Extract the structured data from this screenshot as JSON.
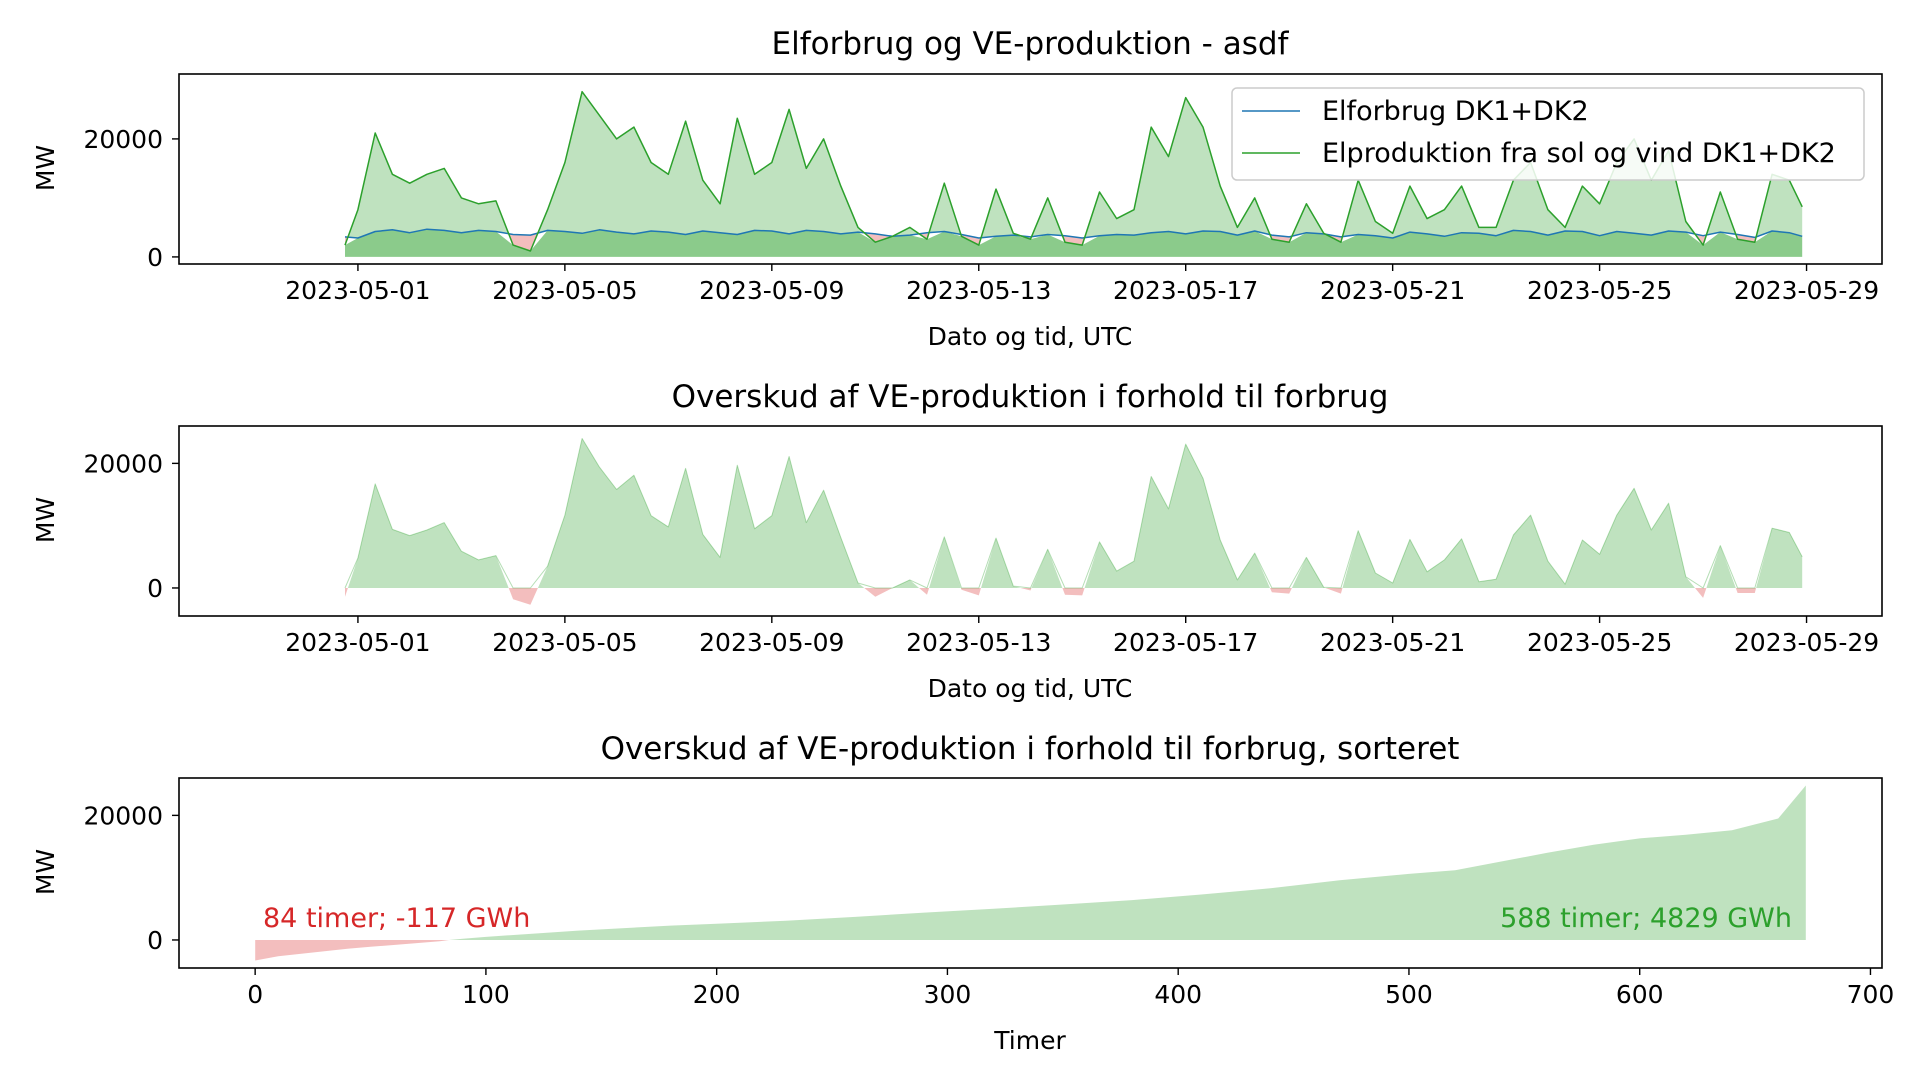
{
  "colors": {
    "consumption": "#1f77b4",
    "production": "#2ca02c",
    "surplus_fill": "#2ca02c",
    "deficit_fill": "#d62728",
    "deficit_text": "#d62728",
    "surplus_text": "#2ca02c"
  },
  "chart_data": [
    {
      "type": "area",
      "title": "Elforbrug og VE-produktion - asdf",
      "xlabel": "Dato og tid, UTC",
      "ylabel": "MW",
      "x_kind": "date",
      "xlim": [
        "2023-04-27T13:00",
        "2023-05-30T11:00"
      ],
      "ylim": [
        -1200,
        31000
      ],
      "xticks": [
        "2023-05-01",
        "2023-05-05",
        "2023-05-09",
        "2023-05-13",
        "2023-05-17",
        "2023-05-21",
        "2023-05-25",
        "2023-05-29"
      ],
      "yticks": [
        0,
        20000
      ],
      "legend_position": "top-right",
      "grid": false,
      "x": [
        "2023-04-30 18:00",
        "2023-05-01 00:00",
        "2023-05-01 08:00",
        "2023-05-01 16:00",
        "2023-05-02 00:00",
        "2023-05-02 08:00",
        "2023-05-02 16:00",
        "2023-05-03 00:00",
        "2023-05-03 08:00",
        "2023-05-03 16:00",
        "2023-05-04 00:00",
        "2023-05-04 08:00",
        "2023-05-04 16:00",
        "2023-05-05 00:00",
        "2023-05-05 08:00",
        "2023-05-05 16:00",
        "2023-05-06 00:00",
        "2023-05-06 08:00",
        "2023-05-06 16:00",
        "2023-05-07 00:00",
        "2023-05-07 08:00",
        "2023-05-07 16:00",
        "2023-05-08 00:00",
        "2023-05-08 08:00",
        "2023-05-08 16:00",
        "2023-05-09 00:00",
        "2023-05-09 08:00",
        "2023-05-09 16:00",
        "2023-05-10 00:00",
        "2023-05-10 08:00",
        "2023-05-10 16:00",
        "2023-05-11 00:00",
        "2023-05-11 08:00",
        "2023-05-11 16:00",
        "2023-05-12 00:00",
        "2023-05-12 08:00",
        "2023-05-12 16:00",
        "2023-05-13 00:00",
        "2023-05-13 08:00",
        "2023-05-13 16:00",
        "2023-05-14 00:00",
        "2023-05-14 08:00",
        "2023-05-14 16:00",
        "2023-05-15 00:00",
        "2023-05-15 08:00",
        "2023-05-15 16:00",
        "2023-05-16 00:00",
        "2023-05-16 08:00",
        "2023-05-16 16:00",
        "2023-05-17 00:00",
        "2023-05-17 08:00",
        "2023-05-17 16:00",
        "2023-05-18 00:00",
        "2023-05-18 08:00",
        "2023-05-18 16:00",
        "2023-05-19 00:00",
        "2023-05-19 08:00",
        "2023-05-19 16:00",
        "2023-05-20 00:00",
        "2023-05-20 08:00",
        "2023-05-20 16:00",
        "2023-05-21 00:00",
        "2023-05-21 08:00",
        "2023-05-21 16:00",
        "2023-05-22 00:00",
        "2023-05-22 08:00",
        "2023-05-22 16:00",
        "2023-05-23 00:00",
        "2023-05-23 08:00",
        "2023-05-23 16:00",
        "2023-05-24 00:00",
        "2023-05-24 08:00",
        "2023-05-24 16:00",
        "2023-05-25 00:00",
        "2023-05-25 08:00",
        "2023-05-25 16:00",
        "2023-05-26 00:00",
        "2023-05-26 08:00",
        "2023-05-26 16:00",
        "2023-05-27 00:00",
        "2023-05-27 08:00",
        "2023-05-27 16:00",
        "2023-05-28 00:00",
        "2023-05-28 08:00",
        "2023-05-28 16:00",
        "2023-05-28 22:00"
      ],
      "series": [
        {
          "name": "Elforbrug DK1+DK2",
          "values": [
            3400,
            3200,
            4300,
            4600,
            4100,
            4700,
            4500,
            4100,
            4500,
            4300,
            3800,
            3700,
            4500,
            4300,
            4000,
            4600,
            4200,
            3900,
            4400,
            4200,
            3800,
            4400,
            4100,
            3800,
            4500,
            4400,
            3900,
            4500,
            4300,
            3900,
            4200,
            3900,
            3500,
            3700,
            4100,
            4300,
            3800,
            3200,
            3500,
            3700,
            3400,
            3800,
            3600,
            3200,
            3600,
            3800,
            3700,
            4100,
            4300,
            3900,
            4400,
            4300,
            3700,
            4400,
            3700,
            3400,
            4100,
            3900,
            3400,
            3800,
            3600,
            3200,
            4200,
            3900,
            3500,
            4100,
            4000,
            3600,
            4500,
            4300,
            3700,
            4400,
            4300,
            3600,
            4300,
            4000,
            3700,
            4400,
            4200,
            3600,
            4200,
            3800,
            3300,
            4400,
            4100,
            3500
          ]
        },
        {
          "name": "Elproduktion fra sol og vind DK1+DK2",
          "values": [
            2000,
            8000,
            21000,
            14000,
            12500,
            14000,
            15000,
            10000,
            9000,
            9500,
            2000,
            1000,
            8000,
            16000,
            28000,
            24000,
            20000,
            22000,
            16000,
            14000,
            23000,
            13000,
            9000,
            23500,
            14000,
            16000,
            25000,
            15000,
            20000,
            12000,
            5000,
            2500,
            3500,
            5000,
            3000,
            12500,
            3500,
            2000,
            11500,
            4000,
            3000,
            10000,
            2500,
            2000,
            11000,
            6500,
            8000,
            22000,
            17000,
            27000,
            22000,
            12000,
            5000,
            10000,
            3000,
            2500,
            9000,
            4000,
            2500,
            13000,
            6000,
            4000,
            12000,
            6500,
            8000,
            12000,
            5000,
            5000,
            13000,
            16000,
            8000,
            5000,
            12000,
            9000,
            16000,
            20000,
            13000,
            18000,
            6000,
            2000,
            11000,
            3000,
            2500,
            14000,
            13000,
            8500
          ]
        }
      ]
    },
    {
      "type": "area",
      "title": "Overskud af VE-produktion i forhold til forbrug",
      "xlabel": "Dato og tid, UTC",
      "ylabel": "MW",
      "x_kind": "date",
      "xlim": [
        "2023-04-27T13:00",
        "2023-05-30T11:00"
      ],
      "ylim": [
        -4500,
        26000
      ],
      "xticks": [
        "2023-05-01",
        "2023-05-05",
        "2023-05-09",
        "2023-05-13",
        "2023-05-17",
        "2023-05-21",
        "2023-05-25",
        "2023-05-29"
      ],
      "yticks": [
        0,
        20000
      ],
      "grid": false,
      "x": [
        "2023-04-30 18:00",
        "2023-05-01 00:00",
        "2023-05-01 08:00",
        "2023-05-01 16:00",
        "2023-05-02 00:00",
        "2023-05-02 08:00",
        "2023-05-02 16:00",
        "2023-05-03 00:00",
        "2023-05-03 08:00",
        "2023-05-03 16:00",
        "2023-05-04 00:00",
        "2023-05-04 08:00",
        "2023-05-04 16:00",
        "2023-05-05 00:00",
        "2023-05-05 08:00",
        "2023-05-05 16:00",
        "2023-05-06 00:00",
        "2023-05-06 08:00",
        "2023-05-06 16:00",
        "2023-05-07 00:00",
        "2023-05-07 08:00",
        "2023-05-07 16:00",
        "2023-05-08 00:00",
        "2023-05-08 08:00",
        "2023-05-08 16:00",
        "2023-05-09 00:00",
        "2023-05-09 08:00",
        "2023-05-09 16:00",
        "2023-05-10 00:00",
        "2023-05-10 08:00",
        "2023-05-10 16:00",
        "2023-05-11 00:00",
        "2023-05-11 08:00",
        "2023-05-11 16:00",
        "2023-05-12 00:00",
        "2023-05-12 08:00",
        "2023-05-12 16:00",
        "2023-05-13 00:00",
        "2023-05-13 08:00",
        "2023-05-13 16:00",
        "2023-05-14 00:00",
        "2023-05-14 08:00",
        "2023-05-14 16:00",
        "2023-05-15 00:00",
        "2023-05-15 08:00",
        "2023-05-15 16:00",
        "2023-05-16 00:00",
        "2023-05-16 08:00",
        "2023-05-16 16:00",
        "2023-05-17 00:00",
        "2023-05-17 08:00",
        "2023-05-17 16:00",
        "2023-05-18 00:00",
        "2023-05-18 08:00",
        "2023-05-18 16:00",
        "2023-05-19 00:00",
        "2023-05-19 08:00",
        "2023-05-19 16:00",
        "2023-05-20 00:00",
        "2023-05-20 08:00",
        "2023-05-20 16:00",
        "2023-05-21 00:00",
        "2023-05-21 08:00",
        "2023-05-21 16:00",
        "2023-05-22 00:00",
        "2023-05-22 08:00",
        "2023-05-22 16:00",
        "2023-05-23 00:00",
        "2023-05-23 08:00",
        "2023-05-23 16:00",
        "2023-05-24 00:00",
        "2023-05-24 08:00",
        "2023-05-24 16:00",
        "2023-05-25 00:00",
        "2023-05-25 08:00",
        "2023-05-25 16:00",
        "2023-05-26 00:00",
        "2023-05-26 08:00",
        "2023-05-26 16:00",
        "2023-05-27 00:00",
        "2023-05-27 08:00",
        "2023-05-27 16:00",
        "2023-05-28 00:00",
        "2023-05-28 08:00",
        "2023-05-28 16:00",
        "2023-05-28 22:00"
      ],
      "series": [
        {
          "name": "",
          "values": [
            -1400,
            4800,
            16700,
            9400,
            8400,
            9300,
            10500,
            5900,
            4500,
            5200,
            -1800,
            -2700,
            3500,
            11700,
            24000,
            19400,
            15800,
            18100,
            11600,
            9800,
            19200,
            8600,
            4900,
            19700,
            9500,
            11600,
            21100,
            10500,
            15700,
            8100,
            800,
            -1400,
            0,
            1300,
            -1100,
            8200,
            -300,
            -1200,
            8000,
            300,
            -400,
            6200,
            -1100,
            -1200,
            7400,
            2700,
            4300,
            17900,
            12700,
            23100,
            17600,
            7700,
            1300,
            5600,
            -700,
            -900,
            4900,
            100,
            -900,
            9200,
            2400,
            800,
            7800,
            2600,
            4500,
            7900,
            1000,
            1400,
            8500,
            11700,
            4300,
            600,
            7700,
            5400,
            11700,
            16000,
            9300,
            13600,
            1800,
            -1600,
            6800,
            -800,
            -800,
            9600,
            8900,
            5000
          ]
        }
      ]
    },
    {
      "type": "area",
      "title": "Overskud af VE-produktion i forhold til forbrug, sorteret",
      "xlabel": "Timer",
      "ylabel": "MW",
      "xlim": [
        -33,
        705
      ],
      "ylim": [
        -4500,
        26000
      ],
      "xticks": [
        0,
        100,
        200,
        300,
        400,
        500,
        600,
        700
      ],
      "yticks": [
        0,
        20000
      ],
      "grid": false,
      "x": [
        0,
        10,
        20,
        30,
        40,
        50,
        60,
        70,
        80,
        84,
        90,
        100,
        120,
        140,
        160,
        180,
        200,
        230,
        260,
        290,
        320,
        350,
        380,
        410,
        440,
        470,
        500,
        520,
        540,
        560,
        580,
        600,
        620,
        640,
        660,
        672
      ],
      "series": [
        {
          "name": "",
          "values": [
            -3300,
            -2600,
            -2200,
            -1800,
            -1400,
            -1100,
            -800,
            -500,
            -200,
            0,
            200,
            500,
            1000,
            1500,
            1900,
            2300,
            2600,
            3100,
            3700,
            4400,
            5000,
            5700,
            6400,
            7300,
            8300,
            9600,
            10600,
            11200,
            12600,
            14000,
            15300,
            16300,
            16900,
            17600,
            19500,
            24800
          ]
        }
      ],
      "annotations": [
        {
          "text": "84 timer; -117 GWh",
          "color": "deficit",
          "anchor": "left"
        },
        {
          "text": "588 timer; 4829 GWh",
          "color": "surplus",
          "anchor": "right"
        }
      ]
    }
  ]
}
